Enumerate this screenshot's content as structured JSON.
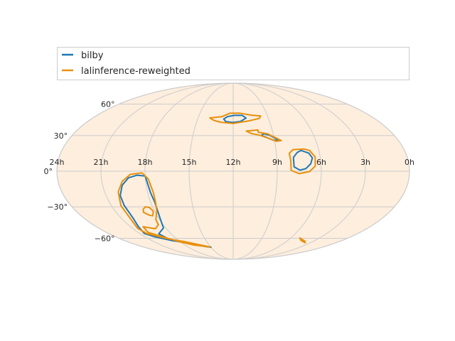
{
  "chart_data": {
    "type": "sky-map",
    "projection": "mollweide",
    "title": "",
    "xlabel": "",
    "ylabel": "",
    "grid": true,
    "legend_placement": "top",
    "background_color": "#fdeede",
    "grid_color": "#cccccc",
    "ra_ticks": [
      "24h",
      "21h",
      "18h",
      "15h",
      "12h",
      "9h",
      "6h",
      "3h",
      "0h"
    ],
    "ra_tick_hours": [
      24,
      21,
      18,
      15,
      12,
      9,
      6,
      3,
      0
    ],
    "dec_ticks": [
      "60°",
      "30°",
      "0°",
      "−30°",
      "−60°"
    ],
    "dec_tick_values": [
      60,
      30,
      0,
      -30,
      -60
    ],
    "series": [
      {
        "name": "bilby",
        "color": "#1f77b4",
        "contours": [
          [
            [
              11.9,
              48.5
            ],
            [
              11.2,
              48.5
            ],
            [
              10.9,
              45.9
            ],
            [
              11.4,
              42.7
            ],
            [
              12.0,
              41.8
            ],
            [
              12.6,
              42.5
            ],
            [
              12.8,
              45.0
            ],
            [
              12.5,
              47.3
            ],
            [
              11.9,
              48.5
            ]
          ],
          [
            [
              9.7,
              31.6
            ],
            [
              9.3,
              30.4
            ],
            [
              8.9,
              27.6
            ],
            [
              8.7,
              25.3
            ],
            [
              9.1,
              26.2
            ],
            [
              9.6,
              28.7
            ],
            [
              9.9,
              30.2
            ],
            [
              9.7,
              31.6
            ]
          ],
          [
            [
              7.25,
              17.3
            ],
            [
              7.55,
              15.5
            ],
            [
              7.85,
              11.4
            ],
            [
              7.85,
              3.6
            ],
            [
              7.45,
              0.9
            ],
            [
              7.05,
              2.2
            ],
            [
              6.7,
              6.2
            ],
            [
              6.55,
              11.0
            ],
            [
              6.75,
              15.1
            ],
            [
              7.25,
              17.3
            ]
          ],
          [
            [
              18.0,
              -4.0
            ],
            [
              18.55,
              -3.3
            ],
            [
              19.15,
              -5.5
            ],
            [
              19.65,
              -11.6
            ],
            [
              20.0,
              -20.3
            ],
            [
              20.05,
              -28.7
            ],
            [
              20.05,
              -40.3
            ],
            [
              20.3,
              -48.0
            ],
            [
              20.55,
              -54.9
            ],
            [
              20.0,
              -58.3
            ],
            [
              18.7,
              -62.6
            ],
            [
              17.3,
              -64.9
            ],
            [
              15.5,
              -69.6
            ],
            [
              15.0,
              -70.0
            ],
            [
              17.3,
              -65.5
            ],
            [
              18.8,
              -62.0
            ],
            [
              19.2,
              -55.2
            ],
            [
              18.2,
              -49.4
            ],
            [
              17.9,
              -40.9
            ],
            [
              17.7,
              -26.2
            ],
            [
              17.8,
              -18.0
            ],
            [
              18.0,
              -4.0
            ]
          ]
        ]
      },
      {
        "name": "lalinference-reweighted",
        "color": "#e8900c",
        "contours": [
          [
            [
              14.0,
              46.1
            ],
            [
              13.0,
              47.2
            ],
            [
              12.3,
              50.6
            ],
            [
              11.4,
              50.7
            ],
            [
              10.4,
              48.7
            ],
            [
              9.6,
              47.9
            ],
            [
              9.8,
              45.5
            ],
            [
              10.7,
              43.3
            ],
            [
              12.0,
              40.9
            ],
            [
              13.0,
              42.0
            ],
            [
              13.6,
              43.7
            ],
            [
              14.0,
              46.1
            ]
          ],
          [
            [
              10.1,
              35.0
            ],
            [
              10.1,
              33.0
            ],
            [
              9.4,
              31.5
            ],
            [
              8.9,
              28.3
            ],
            [
              8.5,
              25.7
            ],
            [
              8.9,
              25.2
            ],
            [
              9.5,
              28.1
            ],
            [
              10.0,
              30.3
            ],
            [
              10.6,
              31.7
            ],
            [
              11.0,
              34.0
            ],
            [
              10.1,
              35.0
            ]
          ],
          [
            [
              7.8,
              18.0
            ],
            [
              7.0,
              18.5
            ],
            [
              6.65,
              17.3
            ],
            [
              6.35,
              11.9
            ],
            [
              6.4,
              4.3
            ],
            [
              6.8,
              -0.3
            ],
            [
              7.5,
              -2.0
            ],
            [
              8.05,
              0.6
            ],
            [
              8.05,
              8.8
            ],
            [
              8.1,
              14.9
            ],
            [
              7.8,
              18.0
            ]
          ],
          [
            [
              18.2,
              -1.4
            ],
            [
              19.0,
              -2.6
            ],
            [
              19.6,
              -8.3
            ],
            [
              20.05,
              -17.2
            ],
            [
              20.3,
              -29.0
            ],
            [
              20.3,
              -40.7
            ],
            [
              20.55,
              -49.9
            ],
            [
              20.3,
              -55.1
            ],
            [
              18.9,
              -60.5
            ],
            [
              17.6,
              -63.4
            ],
            [
              15.1,
              -69.8
            ],
            [
              17.0,
              -67.3
            ],
            [
              18.1,
              -63.7
            ],
            [
              19.3,
              -57.8
            ],
            [
              20.05,
              -53.8
            ],
            [
              19.9,
              -48.2
            ],
            [
              19.0,
              -50.2
            ],
            [
              18.4,
              -46.2
            ],
            [
              18.3,
              -41.5
            ],
            [
              17.85,
              -34.2
            ],
            [
              17.65,
              -26.5
            ],
            [
              17.6,
              -18.0
            ],
            [
              17.8,
              -6.5
            ],
            [
              18.2,
              -1.4
            ]
          ],
          [
            [
              18.55,
              -30.0
            ],
            [
              18.25,
              -30.6
            ],
            [
              18.1,
              -33.9
            ],
            [
              18.35,
              -38.0
            ],
            [
              18.6,
              -37.4
            ],
            [
              18.9,
              -34.9
            ],
            [
              18.8,
              -32.3
            ],
            [
              18.55,
              -30.0
            ]
          ],
          [
            [
              5.05,
              -59.6
            ],
            [
              4.0,
              -62.9
            ],
            [
              3.6,
              -64.8
            ],
            [
              3.75,
              -64.4
            ],
            [
              4.5,
              -62.4
            ],
            [
              5.05,
              -59.6
            ]
          ]
        ]
      }
    ]
  }
}
